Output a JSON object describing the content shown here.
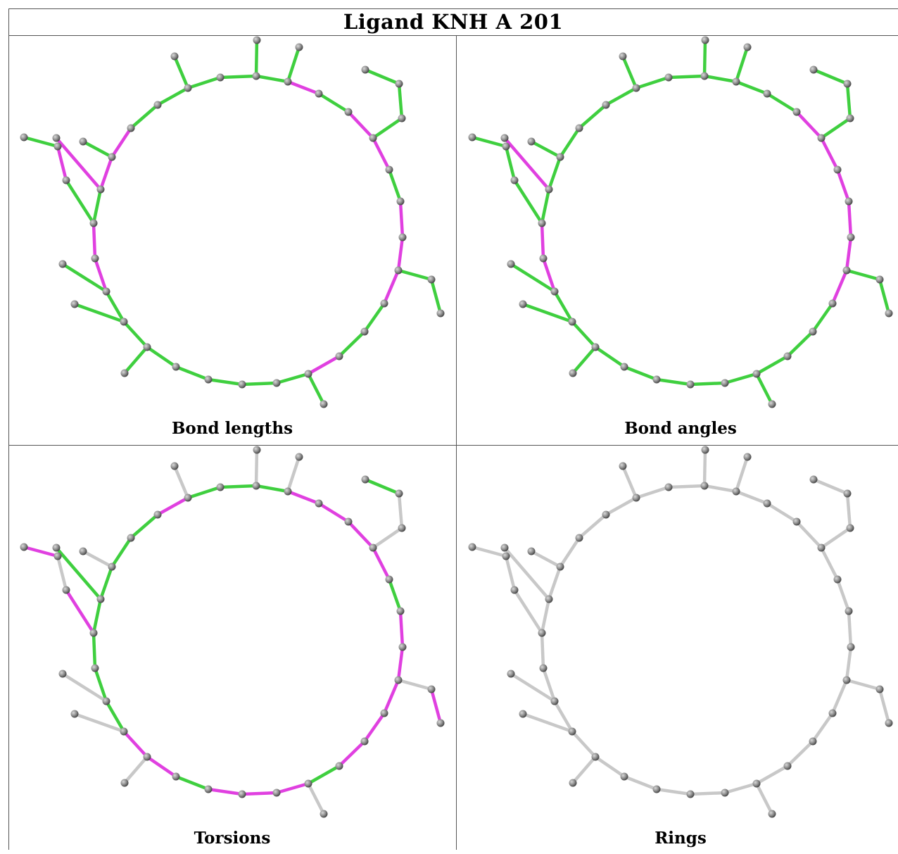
{
  "title": "Ligand KNH A 201",
  "panels": [
    {
      "id": "bond-lengths",
      "caption": "Bond lengths"
    },
    {
      "id": "bond-angles",
      "caption": "Bond angles"
    },
    {
      "id": "torsions",
      "caption": "Torsions"
    },
    {
      "id": "rings",
      "caption": "Rings"
    }
  ],
  "colors": {
    "ok": "#3fcf3f",
    "outlier": "#e040e0",
    "neutral": "#c8c8c8",
    "atom": "#8c8c8c"
  }
}
